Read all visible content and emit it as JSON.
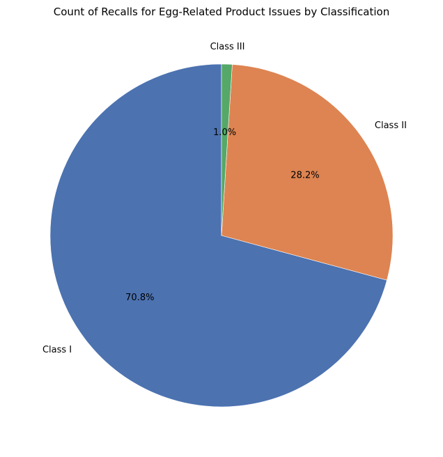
{
  "chart_data": {
    "type": "pie",
    "title": "Count of Recalls for Egg-Related Product Issues by Classification",
    "categories": [
      "Class I",
      "Class II",
      "Class III"
    ],
    "values": [
      70.8,
      28.2,
      1.0
    ],
    "percent_labels": [
      "70.8%",
      "28.2%",
      "1.0%"
    ],
    "colors": [
      "#4c72b0",
      "#dd8452",
      "#55a868"
    ],
    "start_angle_deg": 90,
    "direction": "counterclockwise",
    "legend": "none"
  }
}
